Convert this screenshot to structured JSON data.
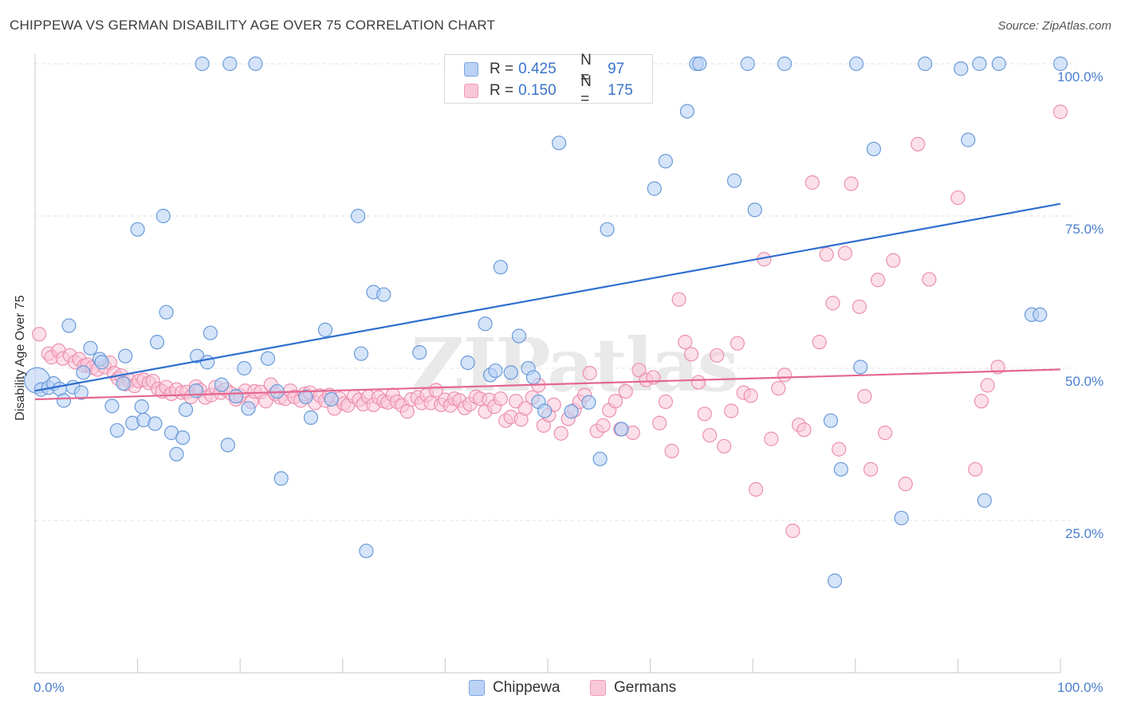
{
  "title": "CHIPPEWA VS GERMAN DISABILITY AGE OVER 75 CORRELATION CHART",
  "source": "Source: ZipAtlas.com",
  "watermark": "ZIPatlas",
  "legend_top": {
    "rows": [
      {
        "r_label": "R =",
        "r_value": "0.425",
        "n_label": "N =",
        "n_value": "97"
      },
      {
        "r_label": "R =",
        "r_value": "0.150",
        "n_label": "N =",
        "n_value": "175"
      }
    ]
  },
  "legend_bottom": [
    "Chippewa",
    "Germans"
  ],
  "colors": {
    "blue_fill": "#b9d2f5",
    "blue_stroke": "#6a9ad9",
    "blue_line": "#2f6fcf",
    "pink_fill": "#f9c7d7",
    "pink_stroke": "#ec8fb0",
    "pink_line": "#e4678f",
    "axis_text": "#4a7ed0",
    "grid": "#dedede"
  },
  "chart_data": {
    "type": "scatter",
    "title": "CHIPPEWA VS GERMAN DISABILITY AGE OVER 75 CORRELATION CHART",
    "xlabel": "",
    "ylabel": "Disability Age Over 75",
    "xlim": [
      0,
      100
    ],
    "ylim": [
      0,
      105
    ],
    "x_tick_labels": [
      "0.0%",
      "100.0%"
    ],
    "y_tick_labels": [
      "25.0%",
      "50.0%",
      "75.0%",
      "100.0%"
    ],
    "y_ticks": [
      25,
      50,
      75,
      100
    ],
    "grid": "horizontal dashed",
    "legend_position": "top-center",
    "series": [
      {
        "name": "Chippewa",
        "color": "#6a9ad9",
        "R": 0.425,
        "N": 97,
        "trend": [
          [
            0,
            46.3
          ],
          [
            100,
            77.0
          ]
        ],
        "points": [
          [
            0.2,
            48.0
          ],
          [
            0.6,
            46.5
          ],
          [
            1.3,
            46.8
          ],
          [
            1.8,
            47.5
          ],
          [
            2.4,
            46.6
          ],
          [
            2.8,
            44.7
          ],
          [
            3.3,
            57.0
          ],
          [
            3.7,
            46.9
          ],
          [
            4.5,
            46.0
          ],
          [
            4.7,
            49.3
          ],
          [
            5.4,
            53.3
          ],
          [
            6.3,
            51.5
          ],
          [
            6.5,
            51.0
          ],
          [
            7.5,
            43.8
          ],
          [
            8.0,
            39.8
          ],
          [
            8.6,
            47.5
          ],
          [
            8.8,
            52.0
          ],
          [
            9.5,
            41.0
          ],
          [
            10.0,
            72.8
          ],
          [
            10.4,
            43.7
          ],
          [
            10.6,
            41.5
          ],
          [
            11.7,
            40.9
          ],
          [
            11.9,
            54.3
          ],
          [
            12.5,
            75.0
          ],
          [
            12.8,
            59.2
          ],
          [
            13.3,
            39.4
          ],
          [
            13.8,
            35.9
          ],
          [
            14.4,
            38.6
          ],
          [
            14.7,
            43.2
          ],
          [
            15.7,
            46.3
          ],
          [
            15.8,
            52.0
          ],
          [
            16.3,
            100.0
          ],
          [
            16.8,
            51.0
          ],
          [
            17.1,
            55.8
          ],
          [
            18.2,
            47.3
          ],
          [
            18.8,
            37.4
          ],
          [
            19.0,
            100.0
          ],
          [
            19.6,
            45.4
          ],
          [
            20.4,
            50.0
          ],
          [
            20.8,
            43.4
          ],
          [
            21.5,
            100.0
          ],
          [
            22.7,
            51.6
          ],
          [
            23.6,
            46.2
          ],
          [
            24.0,
            31.9
          ],
          [
            26.4,
            45.3
          ],
          [
            26.9,
            41.9
          ],
          [
            28.3,
            56.3
          ],
          [
            28.9,
            44.9
          ],
          [
            31.5,
            75.0
          ],
          [
            31.8,
            52.4
          ],
          [
            32.3,
            20.0
          ],
          [
            33.0,
            62.5
          ],
          [
            34.0,
            62.1
          ],
          [
            37.5,
            52.6
          ],
          [
            42.2,
            50.9
          ],
          [
            43.9,
            57.3
          ],
          [
            44.4,
            48.9
          ],
          [
            44.9,
            49.6
          ],
          [
            45.4,
            66.6
          ],
          [
            46.4,
            49.3
          ],
          [
            47.2,
            55.3
          ],
          [
            48.1,
            50.0
          ],
          [
            48.6,
            48.5
          ],
          [
            49.1,
            44.5
          ],
          [
            49.7,
            43.0
          ],
          [
            51.1,
            87.0
          ],
          [
            52.3,
            42.9
          ],
          [
            54.0,
            44.4
          ],
          [
            55.1,
            35.1
          ],
          [
            55.8,
            72.8
          ],
          [
            57.2,
            40.0
          ],
          [
            60.4,
            79.5
          ],
          [
            61.5,
            84.0
          ],
          [
            63.6,
            92.2
          ],
          [
            64.5,
            100.0
          ],
          [
            64.8,
            100.0
          ],
          [
            68.2,
            80.8
          ],
          [
            69.5,
            100.0
          ],
          [
            70.2,
            76.0
          ],
          [
            73.1,
            100.0
          ],
          [
            77.6,
            41.4
          ],
          [
            78.0,
            15.1
          ],
          [
            78.6,
            33.4
          ],
          [
            80.1,
            100.0
          ],
          [
            80.5,
            50.2
          ],
          [
            81.8,
            86.0
          ],
          [
            84.5,
            25.4
          ],
          [
            86.8,
            100.0
          ],
          [
            90.3,
            99.2
          ],
          [
            91.0,
            87.5
          ],
          [
            92.1,
            100.0
          ],
          [
            92.6,
            28.3
          ],
          [
            94.0,
            100.0
          ],
          [
            97.2,
            58.8
          ],
          [
            98.0,
            58.8
          ],
          [
            100.0,
            100.0
          ]
        ]
      },
      {
        "name": "Germans",
        "color": "#ec8fb0",
        "R": 0.15,
        "N": 175,
        "trend": [
          [
            0,
            44.9
          ],
          [
            100,
            49.8
          ]
        ],
        "points": [
          [
            0.4,
            55.6
          ],
          [
            1.3,
            52.4
          ],
          [
            1.6,
            51.8
          ],
          [
            2.3,
            52.9
          ],
          [
            2.7,
            51.6
          ],
          [
            3.4,
            52.1
          ],
          [
            3.9,
            51.0
          ],
          [
            4.3,
            51.5
          ],
          [
            4.8,
            50.4
          ],
          [
            5.1,
            50.6
          ],
          [
            5.6,
            50.1
          ],
          [
            6.1,
            49.8
          ],
          [
            6.8,
            50.2
          ],
          [
            7.3,
            50.9
          ],
          [
            7.7,
            49.2
          ],
          [
            8.1,
            48.3
          ],
          [
            8.4,
            48.8
          ],
          [
            8.8,
            47.4
          ],
          [
            9.2,
            48.0
          ],
          [
            9.7,
            47.1
          ],
          [
            10.1,
            47.9
          ],
          [
            10.6,
            48.1
          ],
          [
            11.1,
            47.6
          ],
          [
            11.5,
            47.9
          ],
          [
            12.0,
            46.6
          ],
          [
            12.4,
            46.2
          ],
          [
            12.8,
            46.9
          ],
          [
            13.3,
            45.8
          ],
          [
            13.8,
            46.5
          ],
          [
            14.3,
            46.0
          ],
          [
            14.8,
            46.1
          ],
          [
            15.2,
            45.3
          ],
          [
            15.7,
            47.0
          ],
          [
            16.1,
            46.4
          ],
          [
            16.6,
            45.2
          ],
          [
            17.2,
            45.6
          ],
          [
            17.6,
            46.9
          ],
          [
            18.1,
            46.0
          ],
          [
            18.6,
            46.5
          ],
          [
            19.1,
            45.9
          ],
          [
            19.6,
            44.9
          ],
          [
            20.0,
            45.5
          ],
          [
            20.5,
            46.3
          ],
          [
            21.1,
            44.5
          ],
          [
            21.4,
            46.2
          ],
          [
            22.0,
            46.1
          ],
          [
            22.5,
            44.6
          ],
          [
            23.0,
            47.3
          ],
          [
            23.4,
            45.8
          ],
          [
            23.9,
            45.2
          ],
          [
            24.4,
            45.0
          ],
          [
            24.9,
            46.3
          ],
          [
            25.3,
            45.3
          ],
          [
            25.9,
            44.7
          ],
          [
            26.3,
            45.8
          ],
          [
            26.8,
            46.0
          ],
          [
            27.3,
            44.3
          ],
          [
            27.8,
            45.5
          ],
          [
            28.3,
            44.7
          ],
          [
            28.7,
            45.6
          ],
          [
            29.2,
            43.4
          ],
          [
            29.7,
            45.0
          ],
          [
            30.1,
            44.2
          ],
          [
            30.5,
            43.9
          ],
          [
            31.1,
            45.4
          ],
          [
            31.6,
            44.8
          ],
          [
            32.0,
            44.1
          ],
          [
            32.5,
            45.3
          ],
          [
            33.0,
            44.0
          ],
          [
            33.5,
            45.2
          ],
          [
            34.0,
            44.6
          ],
          [
            34.4,
            44.4
          ],
          [
            34.9,
            45.6
          ],
          [
            35.3,
            44.5
          ],
          [
            35.8,
            43.9
          ],
          [
            36.3,
            42.9
          ],
          [
            36.7,
            44.9
          ],
          [
            37.3,
            45.2
          ],
          [
            37.7,
            44.3
          ],
          [
            38.2,
            45.6
          ],
          [
            38.6,
            44.3
          ],
          [
            39.1,
            46.4
          ],
          [
            39.6,
            44.0
          ],
          [
            40.0,
            44.8
          ],
          [
            40.5,
            43.9
          ],
          [
            40.9,
            45.0
          ],
          [
            41.4,
            44.7
          ],
          [
            41.9,
            43.5
          ],
          [
            42.4,
            44.1
          ],
          [
            43.0,
            45.3
          ],
          [
            43.4,
            45.0
          ],
          [
            43.9,
            42.9
          ],
          [
            44.3,
            44.8
          ],
          [
            44.8,
            43.7
          ],
          [
            45.4,
            45.0
          ],
          [
            45.9,
            41.4
          ],
          [
            46.4,
            42.0
          ],
          [
            46.9,
            44.6
          ],
          [
            47.4,
            41.6
          ],
          [
            47.8,
            43.4
          ],
          [
            48.5,
            45.2
          ],
          [
            49.1,
            47.2
          ],
          [
            49.6,
            40.6
          ],
          [
            50.1,
            42.3
          ],
          [
            50.6,
            44.0
          ],
          [
            51.3,
            39.3
          ],
          [
            52.0,
            41.7
          ],
          [
            52.6,
            43.1
          ],
          [
            53.1,
            44.5
          ],
          [
            53.6,
            45.6
          ],
          [
            54.1,
            49.2
          ],
          [
            54.8,
            39.7
          ],
          [
            55.4,
            40.6
          ],
          [
            56.0,
            43.1
          ],
          [
            56.6,
            44.6
          ],
          [
            57.1,
            40.0
          ],
          [
            57.6,
            46.2
          ],
          [
            58.3,
            39.4
          ],
          [
            58.9,
            49.7
          ],
          [
            59.6,
            48.1
          ],
          [
            60.3,
            48.5
          ],
          [
            60.9,
            41.0
          ],
          [
            61.5,
            44.5
          ],
          [
            62.1,
            36.4
          ],
          [
            62.8,
            61.3
          ],
          [
            63.4,
            54.3
          ],
          [
            64.0,
            52.3
          ],
          [
            64.7,
            47.7
          ],
          [
            65.3,
            42.5
          ],
          [
            65.8,
            39.0
          ],
          [
            66.5,
            52.1
          ],
          [
            67.2,
            37.2
          ],
          [
            67.9,
            43.0
          ],
          [
            68.5,
            54.1
          ],
          [
            69.1,
            46.0
          ],
          [
            69.8,
            45.5
          ],
          [
            70.3,
            30.1
          ],
          [
            71.1,
            67.9
          ],
          [
            71.8,
            38.4
          ],
          [
            72.5,
            46.7
          ],
          [
            73.1,
            48.9
          ],
          [
            73.9,
            23.3
          ],
          [
            74.5,
            40.7
          ],
          [
            75.0,
            39.9
          ],
          [
            75.8,
            80.5
          ],
          [
            76.5,
            54.3
          ],
          [
            77.2,
            68.7
          ],
          [
            77.8,
            60.7
          ],
          [
            78.4,
            36.7
          ],
          [
            79.0,
            68.9
          ],
          [
            79.6,
            80.3
          ],
          [
            80.4,
            60.1
          ],
          [
            80.9,
            45.4
          ],
          [
            81.5,
            33.4
          ],
          [
            82.2,
            64.5
          ],
          [
            82.9,
            39.4
          ],
          [
            83.7,
            67.7
          ],
          [
            84.9,
            31.0
          ],
          [
            86.1,
            86.8
          ],
          [
            87.2,
            64.6
          ],
          [
            90.0,
            78.0
          ],
          [
            91.7,
            33.4
          ],
          [
            92.3,
            44.6
          ],
          [
            92.9,
            47.2
          ],
          [
            93.9,
            50.2
          ],
          [
            100.0,
            92.1
          ]
        ]
      }
    ]
  }
}
